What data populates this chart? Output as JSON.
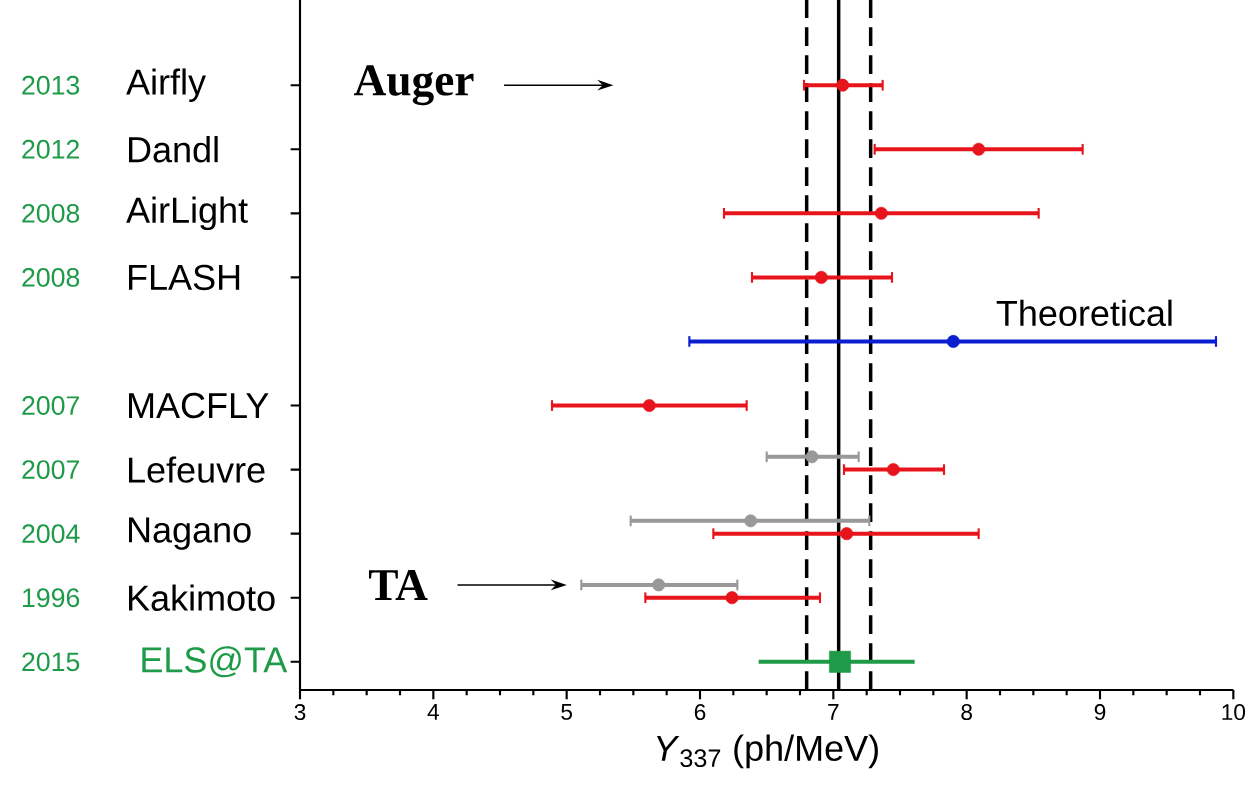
{
  "chart_data": {
    "type": "scatter",
    "orientation": "horizontal",
    "xlabel": "*Y*$_{337}$ (ph/MeV)",
    "categories": [
      "Airfly",
      "Dandl",
      "AirLight",
      "FLASH",
      null,
      "MACFLY",
      "Lefeuvre",
      "Nagano",
      "Kakimoto",
      "ELS@TA"
    ],
    "series": [
      {
        "color": "#e8141b",
        "marker": "circle",
        "values": [
          7.07,
          8.09,
          7.36,
          6.91,
          null,
          5.62,
          7.45,
          7.1,
          6.24,
          null
        ],
        "errors": [
          [
            6.78,
            7.37
          ],
          [
            7.31,
            8.87
          ],
          [
            6.18,
            8.54
          ],
          [
            6.39,
            7.44
          ],
          null,
          [
            4.89,
            6.35
          ],
          [
            7.08,
            7.83
          ],
          [
            6.1,
            8.09
          ],
          [
            5.59,
            6.9
          ],
          null
        ]
      },
      {
        "color": "#999999",
        "marker": "circle",
        "values": [
          null,
          null,
          null,
          null,
          null,
          null,
          6.84,
          6.38,
          5.69,
          null
        ],
        "errors": [
          null,
          null,
          null,
          null,
          null,
          null,
          [
            6.5,
            7.19
          ],
          [
            5.48,
            7.27
          ],
          [
            5.11,
            6.28
          ],
          null
        ]
      },
      {
        "name": "Theoretical",
        "color": "#0b1fd0",
        "marker": "circle",
        "values": [
          null,
          null,
          null,
          null,
          7.9,
          null,
          null,
          null,
          null,
          null
        ],
        "errors": [
          null,
          null,
          null,
          null,
          [
            5.92,
            9.87
          ],
          null,
          null,
          null,
          null,
          null
        ]
      },
      {
        "color": "#1e9a48",
        "marker": "square",
        "values": [
          null,
          null,
          null,
          null,
          null,
          null,
          null,
          null,
          null,
          7.05
        ],
        "errors": [
          null,
          null,
          null,
          null,
          null,
          null,
          null,
          null,
          null,
          [
            6.44,
            7.61
          ]
        ]
      }
    ],
    "xlim": [
      3,
      10
    ],
    "xticks": [
      3,
      4,
      5,
      6,
      7,
      8,
      9,
      10
    ],
    "ref_lines": [
      {
        "axis": "x",
        "value": 6.8,
        "color": "#000000",
        "line_style": "dashed"
      },
      {
        "axis": "x",
        "value": 7.04,
        "color": "#000000",
        "line_style": "solid"
      },
      {
        "axis": "x",
        "value": 7.28,
        "color": "#000000",
        "line_style": "dashed"
      }
    ],
    "annotations": [
      "Auger",
      "TA",
      "2013",
      "2012",
      "2008",
      "2008",
      "2007",
      "2007",
      "2004",
      "1996",
      "2015"
    ]
  }
}
